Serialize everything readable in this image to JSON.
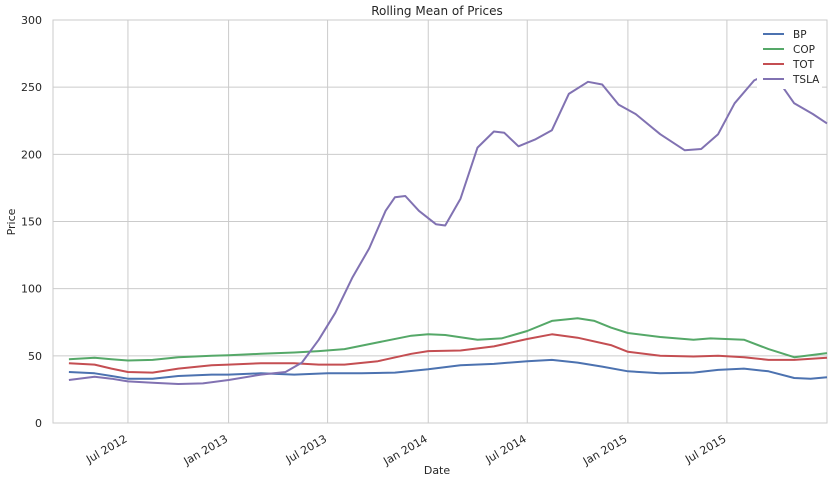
{
  "chart_data": {
    "type": "line",
    "title": "Rolling Mean of Prices",
    "xlabel": "Date",
    "ylabel": "Price",
    "ylim": [
      0,
      300
    ],
    "xlim": [
      "2012-02-15",
      "2015-12-31"
    ],
    "yticks": [
      "0",
      "50",
      "100",
      "150",
      "200",
      "250",
      "300"
    ],
    "xticks": [
      {
        "label": "Jul 2012",
        "date": "2012-07-01"
      },
      {
        "label": "Jan 2013",
        "date": "2013-01-01"
      },
      {
        "label": "Jul 2013",
        "date": "2013-07-01"
      },
      {
        "label": "Jan 2014",
        "date": "2014-01-01"
      },
      {
        "label": "Jul 2014",
        "date": "2014-07-01"
      },
      {
        "label": "Jan 2015",
        "date": "2015-01-01"
      },
      {
        "label": "Jul 2015",
        "date": "2015-07-01"
      }
    ],
    "grid": true,
    "legend_position": "top-right",
    "series": [
      {
        "name": "BP",
        "color": "#4c72b0",
        "points": [
          [
            "2012-03-15",
            38
          ],
          [
            "2012-05-01",
            37
          ],
          [
            "2012-06-01",
            35
          ],
          [
            "2012-07-01",
            33
          ],
          [
            "2012-08-15",
            33
          ],
          [
            "2012-10-01",
            35
          ],
          [
            "2012-12-01",
            36
          ],
          [
            "2013-01-01",
            36
          ],
          [
            "2013-03-01",
            37
          ],
          [
            "2013-05-01",
            36
          ],
          [
            "2013-07-01",
            37
          ],
          [
            "2013-09-01",
            37
          ],
          [
            "2013-11-01",
            37.5
          ],
          [
            "2014-01-01",
            40
          ],
          [
            "2014-03-01",
            43
          ],
          [
            "2014-05-01",
            44
          ],
          [
            "2014-07-01",
            46
          ],
          [
            "2014-08-15",
            47
          ],
          [
            "2014-10-01",
            45
          ],
          [
            "2014-11-15",
            42
          ],
          [
            "2015-01-01",
            38.5
          ],
          [
            "2015-03-01",
            37
          ],
          [
            "2015-05-01",
            37.5
          ],
          [
            "2015-06-15",
            39.5
          ],
          [
            "2015-08-01",
            40.5
          ],
          [
            "2015-09-15",
            38.5
          ],
          [
            "2015-11-01",
            33.5
          ],
          [
            "2015-12-01",
            33
          ],
          [
            "2015-12-31",
            34
          ]
        ]
      },
      {
        "name": "COP",
        "color": "#55a868",
        "points": [
          [
            "2012-03-15",
            47.5
          ],
          [
            "2012-05-01",
            48.5
          ],
          [
            "2012-06-01",
            47.5
          ],
          [
            "2012-07-01",
            46.5
          ],
          [
            "2012-08-15",
            47
          ],
          [
            "2012-10-01",
            49
          ],
          [
            "2012-12-01",
            50
          ],
          [
            "2013-01-01",
            50.5
          ],
          [
            "2013-03-01",
            51.5
          ],
          [
            "2013-05-01",
            52.5
          ],
          [
            "2013-06-15",
            53.5
          ],
          [
            "2013-08-01",
            55
          ],
          [
            "2013-10-01",
            60
          ],
          [
            "2013-12-01",
            65
          ],
          [
            "2014-01-01",
            66
          ],
          [
            "2014-02-01",
            65.5
          ],
          [
            "2014-04-01",
            62
          ],
          [
            "2014-05-15",
            63
          ],
          [
            "2014-07-01",
            68.5
          ],
          [
            "2014-08-15",
            76
          ],
          [
            "2014-10-01",
            78
          ],
          [
            "2014-11-01",
            76
          ],
          [
            "2014-12-01",
            71
          ],
          [
            "2015-01-01",
            67
          ],
          [
            "2015-03-01",
            64
          ],
          [
            "2015-05-01",
            62
          ],
          [
            "2015-06-01",
            63
          ],
          [
            "2015-08-01",
            62
          ],
          [
            "2015-09-15",
            55
          ],
          [
            "2015-11-01",
            49
          ],
          [
            "2015-12-31",
            52
          ]
        ]
      },
      {
        "name": "TOT",
        "color": "#c44e52",
        "points": [
          [
            "2012-03-15",
            44.5
          ],
          [
            "2012-05-01",
            43.5
          ],
          [
            "2012-06-01",
            40.5
          ],
          [
            "2012-07-01",
            38
          ],
          [
            "2012-08-15",
            37.5
          ],
          [
            "2012-10-01",
            40.5
          ],
          [
            "2012-12-01",
            43
          ],
          [
            "2013-01-01",
            43.5
          ],
          [
            "2013-03-01",
            44.5
          ],
          [
            "2013-05-01",
            44.5
          ],
          [
            "2013-06-15",
            43.5
          ],
          [
            "2013-08-01",
            43.5
          ],
          [
            "2013-10-01",
            46
          ],
          [
            "2013-12-01",
            51.5
          ],
          [
            "2014-01-01",
            53.5
          ],
          [
            "2014-03-01",
            54
          ],
          [
            "2014-05-01",
            57
          ],
          [
            "2014-07-01",
            62.5
          ],
          [
            "2014-08-15",
            66
          ],
          [
            "2014-10-01",
            63.5
          ],
          [
            "2014-12-01",
            58
          ],
          [
            "2015-01-01",
            53
          ],
          [
            "2015-03-01",
            50
          ],
          [
            "2015-05-01",
            49.5
          ],
          [
            "2015-06-15",
            50
          ],
          [
            "2015-08-01",
            49
          ],
          [
            "2015-09-15",
            47
          ],
          [
            "2015-11-01",
            47
          ],
          [
            "2015-12-31",
            48.5
          ]
        ]
      },
      {
        "name": "TSLA",
        "color": "#8172b2",
        "points": [
          [
            "2012-03-15",
            32
          ],
          [
            "2012-05-01",
            34.5
          ],
          [
            "2012-06-01",
            33
          ],
          [
            "2012-07-01",
            31
          ],
          [
            "2012-08-15",
            30
          ],
          [
            "2012-10-01",
            29
          ],
          [
            "2012-11-15",
            29.5
          ],
          [
            "2013-01-01",
            32
          ],
          [
            "2013-03-01",
            36
          ],
          [
            "2013-04-15",
            38
          ],
          [
            "2013-05-15",
            45
          ],
          [
            "2013-06-15",
            62
          ],
          [
            "2013-07-15",
            82
          ],
          [
            "2013-08-15",
            108
          ],
          [
            "2013-09-15",
            130
          ],
          [
            "2013-10-15",
            158
          ],
          [
            "2013-11-01",
            168
          ],
          [
            "2013-11-20",
            169
          ],
          [
            "2013-12-15",
            158
          ],
          [
            "2014-01-15",
            148
          ],
          [
            "2014-02-01",
            147
          ],
          [
            "2014-03-01",
            167
          ],
          [
            "2014-04-01",
            205
          ],
          [
            "2014-05-01",
            217
          ],
          [
            "2014-05-20",
            216
          ],
          [
            "2014-06-15",
            206
          ],
          [
            "2014-07-15",
            211
          ],
          [
            "2014-08-15",
            218
          ],
          [
            "2014-09-15",
            245
          ],
          [
            "2014-10-20",
            254
          ],
          [
            "2014-11-15",
            252
          ],
          [
            "2014-12-15",
            237
          ],
          [
            "2015-01-15",
            230
          ],
          [
            "2015-03-01",
            215
          ],
          [
            "2015-04-15",
            203
          ],
          [
            "2015-05-15",
            204
          ],
          [
            "2015-06-15",
            215
          ],
          [
            "2015-07-15",
            238
          ],
          [
            "2015-08-20",
            255
          ],
          [
            "2015-09-10",
            259
          ],
          [
            "2015-10-01",
            256
          ],
          [
            "2015-11-01",
            238
          ],
          [
            "2015-12-05",
            230
          ],
          [
            "2015-12-31",
            223
          ]
        ]
      }
    ]
  }
}
